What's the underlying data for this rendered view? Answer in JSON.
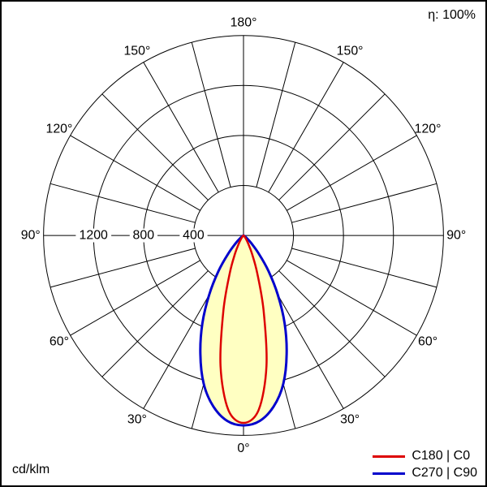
{
  "chart_data": {
    "type": "polar_luminous_intensity",
    "unit": "cd/klm",
    "efficiency": "η: 100%",
    "angle_suffix": "°",
    "r_max": 1600,
    "grid_circles": [
      400,
      800,
      1200,
      1600
    ],
    "radial_labels": [
      1200,
      800,
      400
    ],
    "angle_step_deg": 15,
    "angle_labels": [
      0,
      30,
      60,
      90,
      120,
      150,
      180
    ],
    "beam_fill_color": "#ffffc2",
    "series": [
      {
        "name": "C180 | C0",
        "color": "#dd0000",
        "points": [
          [
            0,
            1500
          ],
          [
            5,
            1400
          ],
          [
            10,
            1060
          ],
          [
            15,
            620
          ],
          [
            20,
            320
          ],
          [
            25,
            160
          ],
          [
            30,
            75
          ],
          [
            35,
            35
          ],
          [
            40,
            15
          ],
          [
            50,
            6
          ],
          [
            65,
            2
          ],
          [
            90,
            0
          ]
        ]
      },
      {
        "name": "C270 | C90",
        "color": "#0000cc",
        "points": [
          [
            0,
            1520
          ],
          [
            5,
            1490
          ],
          [
            10,
            1390
          ],
          [
            15,
            1230
          ],
          [
            20,
            1010
          ],
          [
            25,
            780
          ],
          [
            30,
            550
          ],
          [
            35,
            350
          ],
          [
            40,
            190
          ],
          [
            45,
            90
          ],
          [
            50,
            40
          ],
          [
            55,
            15
          ],
          [
            60,
            6
          ],
          [
            75,
            2
          ],
          [
            90,
            0
          ]
        ]
      }
    ]
  }
}
